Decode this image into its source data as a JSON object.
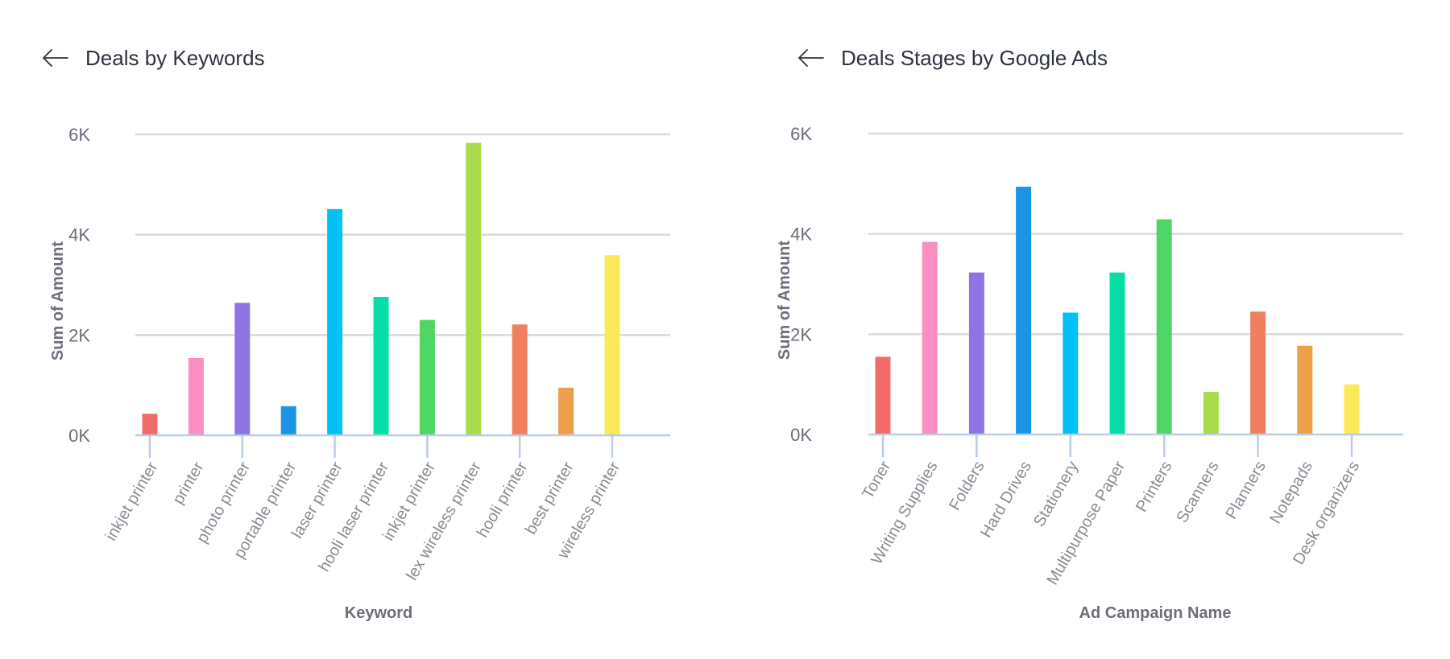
{
  "colors": {
    "grid": "#d8d9dd",
    "axis": "#b9cde6",
    "title": "#2e3340",
    "bars": [
      "#f26b6b",
      "#fb8ec2",
      "#8e74e3",
      "#1b94e4",
      "#00c2f5",
      "#05dfa5",
      "#4fd665",
      "#a8dc4c",
      "#f07f5d",
      "#eda049",
      "#fbe95a"
    ]
  },
  "panels": {
    "left": {
      "title": "Deals by Keywords",
      "back_icon": "arrow-left-icon"
    },
    "right": {
      "title": "Deals Stages by Google Ads",
      "back_icon": "arrow-left-icon"
    }
  },
  "chart_data": [
    {
      "type": "bar",
      "title": "Deals by Keywords",
      "xlabel": "Keyword",
      "ylabel": "Sum of Amount",
      "ylim": [
        0,
        6000
      ],
      "yticks": [
        "0K",
        "2K",
        "4K",
        "6K"
      ],
      "grid": true,
      "categories": [
        "inkjet printer",
        "printer",
        "photo printer",
        "portable printer",
        "laser printer",
        "hooli laser printer",
        "inkjet printer",
        "lex wireless printer",
        "hooli printer",
        "best printer",
        "wireless printer"
      ],
      "values": [
        430,
        1540,
        2640,
        580,
        4510,
        2760,
        2300,
        5830,
        2210,
        950,
        3590
      ]
    },
    {
      "type": "bar",
      "title": "Deals Stages by Google Ads",
      "xlabel": "Ad Campaign Name",
      "ylabel": "Sum of Amount",
      "ylim": [
        0,
        6000
      ],
      "yticks": [
        "0K",
        "2K",
        "4K",
        "6K"
      ],
      "grid": true,
      "categories": [
        "Toner",
        "Writing Supplies",
        "Folders",
        "Hard Drives",
        "Stationery",
        "Multipurpose Paper",
        "Printers",
        "Scanners",
        "Planners",
        "Notepads",
        "Desk organizers"
      ],
      "values": [
        1550,
        3840,
        3230,
        4940,
        2430,
        3230,
        4290,
        850,
        2450,
        1770,
        1000
      ]
    }
  ]
}
